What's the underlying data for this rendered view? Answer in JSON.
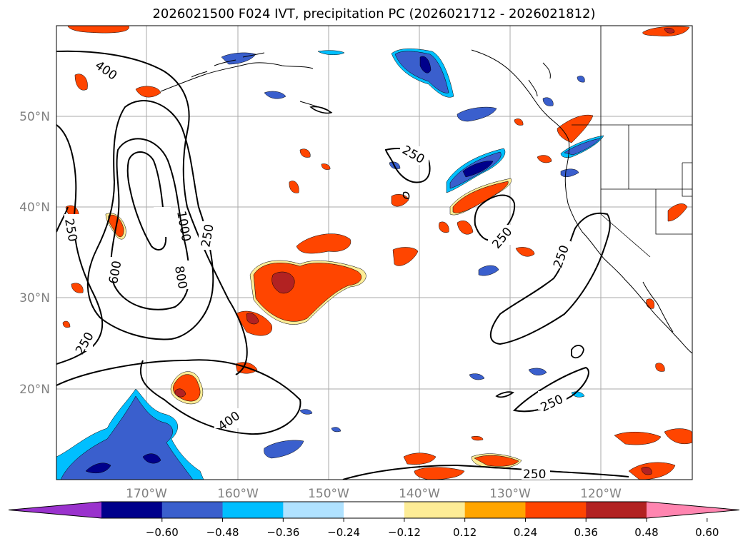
{
  "title": "2026021500 F024 IVT, precipitation PC (2026021712 - 2026021812)",
  "lat_labels": [
    "50°N",
    "40°N",
    "30°N",
    "20°N"
  ],
  "lon_labels": [
    "170°W",
    "160°W",
    "150°W",
    "140°W",
    "130°W",
    "120°W"
  ],
  "contour_labels": [
    "400",
    "1000",
    "800",
    "600",
    "250",
    "250",
    "250",
    "250",
    "250",
    "250",
    "400",
    "250",
    "250"
  ],
  "colorbar": {
    "ticks": [
      "−0.60",
      "−0.48",
      "−0.36",
      "−0.24",
      "−0.12",
      "0.12",
      "0.24",
      "0.36",
      "0.48",
      "0.60"
    ],
    "colors": [
      "#9a32cd",
      "#00008b",
      "#3a5fcd",
      "#00bfff",
      "#b0e2ff",
      "#ffffff",
      "#fdec96",
      "#ffa500",
      "#ff4500",
      "#b22222",
      "#ff85b0"
    ]
  }
}
